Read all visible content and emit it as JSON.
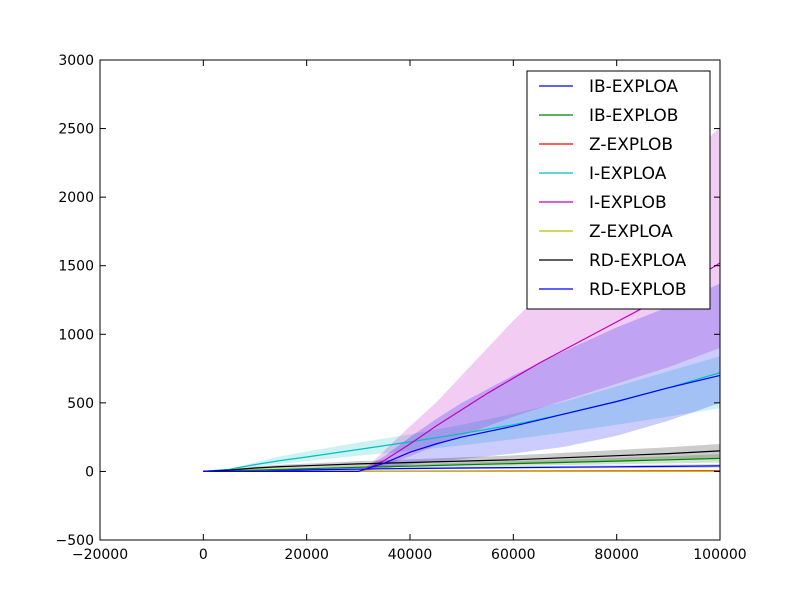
{
  "chart_data": {
    "type": "line",
    "title": "",
    "xlabel": "",
    "ylabel": "",
    "xlim": [
      -20000,
      100000
    ],
    "ylim": [
      -500,
      3000
    ],
    "xticks": [
      -20000,
      0,
      20000,
      40000,
      60000,
      80000,
      100000
    ],
    "yticks": [
      -500,
      0,
      500,
      1000,
      1500,
      2000,
      2500,
      3000
    ],
    "grid": false,
    "legend_position": "top-right",
    "series": [
      {
        "name": "IB-EXPLOA",
        "color": "#0000ff",
        "x": [
          0,
          5000,
          10000,
          20000,
          30000,
          40000,
          50000,
          60000,
          70000,
          80000,
          90000,
          100000
        ],
        "y": [
          0,
          3,
          6,
          12,
          17,
          21,
          25,
          28,
          31,
          34,
          37,
          40
        ],
        "lower": [
          0,
          2,
          4,
          8,
          12,
          15,
          18,
          20,
          22,
          24,
          26,
          28
        ],
        "upper": [
          0,
          4,
          8,
          16,
          22,
          27,
          32,
          36,
          40,
          44,
          48,
          52
        ]
      },
      {
        "name": "IB-EXPLOB",
        "color": "#008000",
        "x": [
          0,
          5000,
          10000,
          20000,
          30000,
          40000,
          50000,
          60000,
          70000,
          80000,
          90000,
          100000
        ],
        "y": [
          0,
          5,
          10,
          20,
          30,
          38,
          48,
          57,
          66,
          75,
          85,
          95
        ],
        "lower": [
          0,
          3,
          7,
          14,
          21,
          27,
          34,
          40,
          46,
          52,
          58,
          65
        ],
        "upper": [
          0,
          7,
          13,
          26,
          39,
          49,
          62,
          74,
          86,
          98,
          112,
          125
        ]
      },
      {
        "name": "Z-EXPLOB",
        "color": "#ff0000",
        "x": [
          0,
          20000,
          40000,
          60000,
          80000,
          100000
        ],
        "y": [
          0,
          1,
          2,
          3,
          4,
          5
        ],
        "lower": [
          0,
          0,
          1,
          1,
          2,
          2
        ],
        "upper": [
          0,
          2,
          3,
          5,
          6,
          8
        ]
      },
      {
        "name": "I-EXPLOA",
        "color": "#00bfbf",
        "x": [
          0,
          5000,
          10000,
          15000,
          20000,
          30000,
          40000,
          50000,
          60000,
          70000,
          80000,
          90000,
          100000
        ],
        "y": [
          0,
          15,
          50,
          80,
          105,
          160,
          215,
          275,
          340,
          420,
          510,
          610,
          720
        ],
        "lower": [
          0,
          10,
          35,
          55,
          75,
          115,
          150,
          190,
          235,
          285,
          340,
          400,
          460
        ],
        "upper": [
          0,
          20,
          65,
          110,
          145,
          210,
          270,
          340,
          420,
          510,
          620,
          730,
          840
        ]
      },
      {
        "name": "I-EXPLOB",
        "color": "#bf00bf",
        "x": [
          0,
          30000,
          32000,
          35000,
          40000,
          45000,
          50000,
          55000,
          60000,
          65000,
          70000,
          80000,
          90000,
          100000
        ],
        "y": [
          0,
          0,
          25,
          80,
          200,
          330,
          450,
          570,
          680,
          790,
          890,
          1090,
          1290,
          1520
        ],
        "lower": [
          0,
          0,
          10,
          40,
          110,
          190,
          260,
          330,
          400,
          460,
          520,
          640,
          760,
          900
        ],
        "upper": [
          0,
          0,
          40,
          150,
          330,
          500,
          700,
          900,
          1100,
          1280,
          1450,
          1800,
          2150,
          2510
        ]
      },
      {
        "name": "Z-EXPLOA",
        "color": "#bfbf00",
        "x": [
          0,
          20000,
          40000,
          60000,
          80000,
          100000
        ],
        "y": [
          0,
          0,
          0,
          0,
          0,
          0
        ],
        "lower": [
          0,
          0,
          0,
          0,
          0,
          0
        ],
        "upper": [
          0,
          1,
          1,
          1,
          1,
          1
        ]
      },
      {
        "name": "RD-EXPLOA",
        "color": "#000000",
        "x": [
          0,
          5000,
          10000,
          15000,
          20000,
          30000,
          40000,
          50000,
          60000,
          70000,
          80000,
          90000,
          100000
        ],
        "y": [
          0,
          10,
          25,
          35,
          42,
          55,
          65,
          75,
          85,
          100,
          115,
          130,
          150
        ],
        "lower": [
          0,
          6,
          15,
          22,
          27,
          35,
          42,
          48,
          55,
          64,
          74,
          84,
          100
        ],
        "upper": [
          0,
          14,
          35,
          48,
          57,
          75,
          88,
          102,
          117,
          136,
          156,
          176,
          200
        ]
      },
      {
        "name": "RD-EXPLOB",
        "color": "#0000ff",
        "x": [
          0,
          30000,
          35000,
          40000,
          45000,
          50000,
          60000,
          70000,
          80000,
          90000,
          100000
        ],
        "y": [
          0,
          0,
          60,
          140,
          200,
          250,
          330,
          420,
          510,
          610,
          700
        ],
        "lower": [
          0,
          0,
          20,
          50,
          70,
          90,
          130,
          180,
          260,
          370,
          500
        ],
        "upper": [
          0,
          0,
          110,
          250,
          380,
          500,
          700,
          880,
          1050,
          1200,
          1370
        ]
      }
    ]
  }
}
